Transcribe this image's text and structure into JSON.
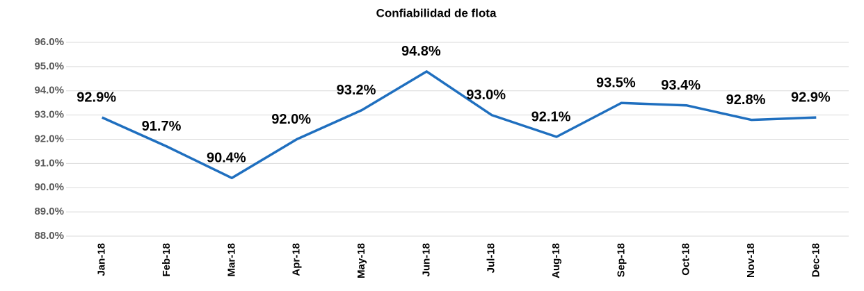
{
  "chart_data": {
    "type": "line",
    "title": "Confiabilidad de flota",
    "categories": [
      "Jan-18",
      "Feb-18",
      "Mar-18",
      "Apr-18",
      "May-18",
      "Jun-18",
      "Jul-18",
      "Aug-18",
      "Sep-18",
      "Oct-18",
      "Nov-18",
      "Dec-18"
    ],
    "series": [
      {
        "name": "Confiabilidad de flota",
        "color": "#1f6fbf",
        "values": [
          92.9,
          91.7,
          90.4,
          92.0,
          93.2,
          94.8,
          93.0,
          92.1,
          93.5,
          93.4,
          92.8,
          92.9
        ],
        "value_labels": [
          "92.9%",
          "91.7%",
          "90.4%",
          "92.0%",
          "93.2%",
          "94.8%",
          "93.0%",
          "92.1%",
          "93.5%",
          "93.4%",
          "92.8%",
          "92.9%"
        ]
      }
    ],
    "ylim": [
      88,
      96
    ],
    "yticks": [
      {
        "value": 88,
        "label": "88.0%"
      },
      {
        "value": 89,
        "label": "89.0%"
      },
      {
        "value": 90,
        "label": "90.0%"
      },
      {
        "value": 91,
        "label": "91.0%"
      },
      {
        "value": 92,
        "label": "92.0%"
      },
      {
        "value": 93,
        "label": "93.0%"
      },
      {
        "value": 94,
        "label": "94.0%"
      },
      {
        "value": 95,
        "label": "95.0%"
      },
      {
        "value": 96,
        "label": "96.0%"
      }
    ],
    "grid": true
  }
}
